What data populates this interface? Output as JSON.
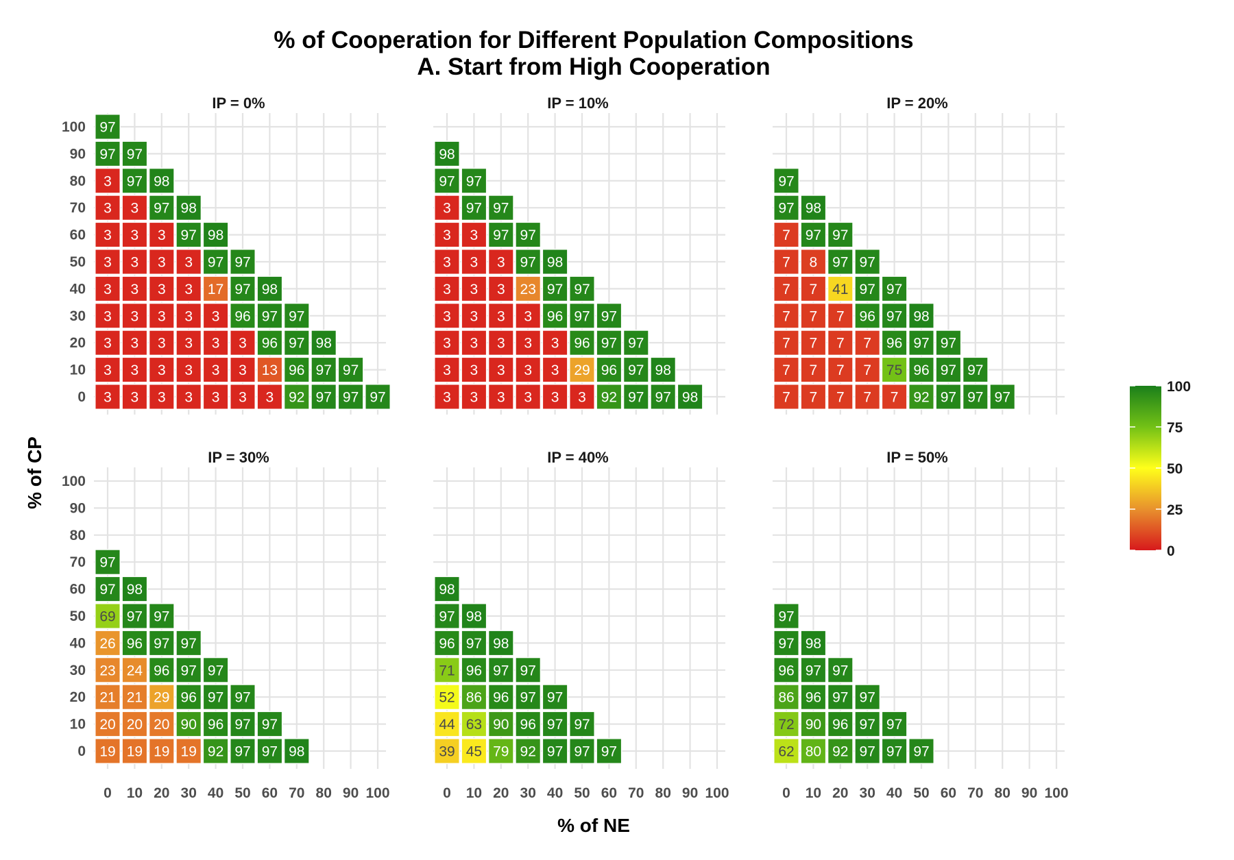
{
  "chart_data": {
    "type": "heatmap",
    "title": "% of Cooperation for Different Population Compositions",
    "subtitle": "A. Start from High Cooperation",
    "xlabel": "% of NE",
    "ylabel": "% of CP",
    "x_ticks": [
      "0",
      "10",
      "20",
      "30",
      "40",
      "50",
      "60",
      "70",
      "80",
      "90",
      "100"
    ],
    "y_ticks": [
      "0",
      "10",
      "20",
      "30",
      "40",
      "50",
      "60",
      "70",
      "80",
      "90",
      "100"
    ],
    "xlim": [
      0,
      100
    ],
    "ylim": [
      0,
      100
    ],
    "grid": true,
    "legend": {
      "position": "right",
      "ticks": [
        "0",
        "25",
        "50",
        "75",
        "100"
      ],
      "range": [
        0,
        100
      ],
      "colors": [
        "#d7191c",
        "#e8912d",
        "#ffff1a",
        "#73c116",
        "#1a7f1a"
      ]
    },
    "panels": [
      {
        "label": "IP = 0%",
        "rows": [
          [
            3,
            3,
            3,
            3,
            3,
            3,
            3,
            92,
            97,
            97,
            97
          ],
          [
            3,
            3,
            3,
            3,
            3,
            3,
            13,
            96,
            97,
            97
          ],
          [
            3,
            3,
            3,
            3,
            3,
            3,
            96,
            97,
            98
          ],
          [
            3,
            3,
            3,
            3,
            3,
            96,
            97,
            97
          ],
          [
            3,
            3,
            3,
            3,
            17,
            97,
            98
          ],
          [
            3,
            3,
            3,
            3,
            97,
            97
          ],
          [
            3,
            3,
            3,
            97,
            98
          ],
          [
            3,
            3,
            97,
            98
          ],
          [
            3,
            97,
            98
          ],
          [
            97,
            97
          ],
          [
            97
          ]
        ]
      },
      {
        "label": "IP = 10%",
        "rows": [
          [
            3,
            3,
            3,
            3,
            3,
            3,
            92,
            97,
            97,
            98
          ],
          [
            3,
            3,
            3,
            3,
            3,
            29,
            96,
            97,
            98
          ],
          [
            3,
            3,
            3,
            3,
            3,
            96,
            97,
            97
          ],
          [
            3,
            3,
            3,
            3,
            96,
            97,
            97
          ],
          [
            3,
            3,
            3,
            23,
            97,
            97
          ],
          [
            3,
            3,
            3,
            97,
            98
          ],
          [
            3,
            3,
            97,
            97
          ],
          [
            3,
            97,
            97
          ],
          [
            97,
            97
          ],
          [
            98
          ]
        ]
      },
      {
        "label": "IP = 20%",
        "rows": [
          [
            7,
            7,
            7,
            7,
            7,
            92,
            97,
            97,
            97
          ],
          [
            7,
            7,
            7,
            7,
            75,
            96,
            97,
            97
          ],
          [
            7,
            7,
            7,
            7,
            96,
            97,
            97
          ],
          [
            7,
            7,
            7,
            96,
            97,
            98
          ],
          [
            7,
            7,
            41,
            97,
            97
          ],
          [
            7,
            8,
            97,
            97
          ],
          [
            7,
            97,
            97
          ],
          [
            97,
            98
          ],
          [
            97
          ]
        ]
      },
      {
        "label": "IP = 30%",
        "rows": [
          [
            19,
            19,
            19,
            19,
            92,
            97,
            97,
            98
          ],
          [
            20,
            20,
            20,
            90,
            96,
            97,
            97
          ],
          [
            21,
            21,
            29,
            96,
            97,
            97
          ],
          [
            23,
            24,
            96,
            97,
            97
          ],
          [
            26,
            96,
            97,
            97
          ],
          [
            69,
            97,
            97
          ],
          [
            97,
            98
          ],
          [
            97
          ]
        ]
      },
      {
        "label": "IP = 40%",
        "rows": [
          [
            39,
            45,
            79,
            92,
            97,
            97,
            97
          ],
          [
            44,
            63,
            90,
            96,
            97,
            97
          ],
          [
            52,
            86,
            96,
            97,
            97
          ],
          [
            71,
            96,
            97,
            97
          ],
          [
            96,
            97,
            98
          ],
          [
            97,
            98
          ],
          [
            98
          ]
        ]
      },
      {
        "label": "IP = 50%",
        "rows": [
          [
            62,
            80,
            92,
            97,
            97,
            97
          ],
          [
            72,
            90,
            96,
            97,
            97
          ],
          [
            86,
            96,
            97,
            97
          ],
          [
            96,
            97,
            97
          ],
          [
            97,
            98
          ],
          [
            97
          ]
        ]
      }
    ]
  }
}
